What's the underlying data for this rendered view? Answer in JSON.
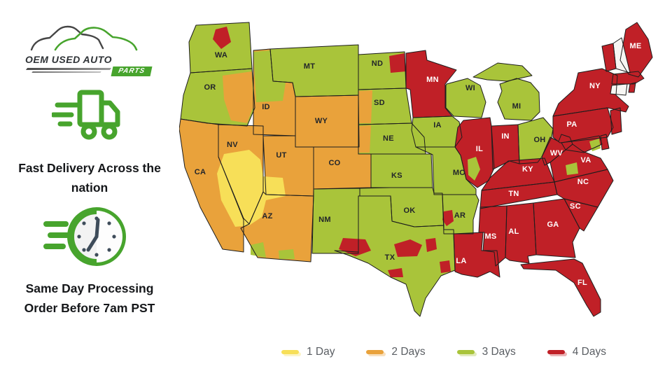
{
  "brand": {
    "logo_text_primary": "OEM USED AUTO",
    "logo_text_secondary": "PARTS",
    "color": "#47A42D"
  },
  "features": [
    {
      "icon": "delivery-truck-icon",
      "text": "Fast Delivery Across the nation"
    },
    {
      "icon": "clock-icon",
      "text": "Same Day Processing Order Before 7am PST"
    }
  ],
  "legend": [
    {
      "key": "1_day",
      "label": "1 Day",
      "color": "#F7DF58"
    },
    {
      "key": "2_days",
      "label": "2 Days",
      "color": "#E9A23B"
    },
    {
      "key": "3_days",
      "label": "3 Days",
      "color": "#A9C43A"
    },
    {
      "key": "4_days",
      "label": "4 Days",
      "color": "#C02027"
    }
  ],
  "map": {
    "description": "United States delivery time by state",
    "border_color": "#1d1d1d",
    "unshaded_color": "#F7F6F3",
    "label_color_dark": "#22252a",
    "label_color_light": "#FFFFFF",
    "states": [
      {
        "code": "WA",
        "delivery": "3_days",
        "label_shown": true
      },
      {
        "code": "OR",
        "delivery": "3_days",
        "label_shown": true
      },
      {
        "code": "CA",
        "delivery": "2_days",
        "label_shown": true
      },
      {
        "code": "NV",
        "delivery": "2_days",
        "label_shown": true
      },
      {
        "code": "ID",
        "delivery": "2_days",
        "label_shown": true
      },
      {
        "code": "MT",
        "delivery": "3_days",
        "label_shown": true
      },
      {
        "code": "WY",
        "delivery": "2_days",
        "label_shown": true
      },
      {
        "code": "UT",
        "delivery": "2_days",
        "label_shown": true
      },
      {
        "code": "CO",
        "delivery": "2_days",
        "label_shown": true
      },
      {
        "code": "AZ",
        "delivery": "2_days",
        "label_shown": true
      },
      {
        "code": "NM",
        "delivery": "3_days",
        "label_shown": true
      },
      {
        "code": "ND",
        "delivery": "3_days",
        "label_shown": true
      },
      {
        "code": "SD",
        "delivery": "3_days",
        "label_shown": true
      },
      {
        "code": "NE",
        "delivery": "3_days",
        "label_shown": true
      },
      {
        "code": "KS",
        "delivery": "3_days",
        "label_shown": true
      },
      {
        "code": "OK",
        "delivery": "3_days",
        "label_shown": true
      },
      {
        "code": "TX",
        "delivery": "3_days",
        "label_shown": true
      },
      {
        "code": "MN",
        "delivery": "4_days",
        "label_shown": true
      },
      {
        "code": "IA",
        "delivery": "3_days",
        "label_shown": true
      },
      {
        "code": "MO",
        "delivery": "3_days",
        "label_shown": true
      },
      {
        "code": "AR",
        "delivery": "3_days",
        "label_shown": true
      },
      {
        "code": "LA",
        "delivery": "4_days",
        "label_shown": true
      },
      {
        "code": "WI",
        "delivery": "3_days",
        "label_shown": true
      },
      {
        "code": "IL",
        "delivery": "4_days",
        "label_shown": true
      },
      {
        "code": "MI",
        "delivery": "3_days",
        "label_shown": true
      },
      {
        "code": "IN",
        "delivery": "4_days",
        "label_shown": true
      },
      {
        "code": "OH",
        "delivery": "3_days",
        "label_shown": true
      },
      {
        "code": "KY",
        "delivery": "4_days",
        "label_shown": true
      },
      {
        "code": "TN",
        "delivery": "4_days",
        "label_shown": true
      },
      {
        "code": "MS",
        "delivery": "4_days",
        "label_shown": true
      },
      {
        "code": "AL",
        "delivery": "4_days",
        "label_shown": true
      },
      {
        "code": "GA",
        "delivery": "4_days",
        "label_shown": true
      },
      {
        "code": "FL",
        "delivery": "4_days",
        "label_shown": true
      },
      {
        "code": "SC",
        "delivery": "4_days",
        "label_shown": true
      },
      {
        "code": "NC",
        "delivery": "4_days",
        "label_shown": true
      },
      {
        "code": "VA",
        "delivery": "4_days",
        "label_shown": true
      },
      {
        "code": "WV",
        "delivery": "4_days",
        "label_shown": true
      },
      {
        "code": "PA",
        "delivery": "4_days",
        "label_shown": true
      },
      {
        "code": "NY",
        "delivery": "4_days",
        "label_shown": true
      },
      {
        "code": "ME",
        "delivery": "4_days",
        "label_shown": true
      },
      {
        "code": "NJ",
        "delivery": "4_days",
        "label_shown": false
      },
      {
        "code": "MD",
        "delivery": "4_days",
        "label_shown": false
      },
      {
        "code": "DE",
        "delivery": "4_days",
        "label_shown": false
      },
      {
        "code": "VT",
        "delivery": "4_days",
        "label_shown": false
      },
      {
        "code": "NH",
        "delivery": "unshaded",
        "label_shown": false
      },
      {
        "code": "MA",
        "delivery": "4_days",
        "label_shown": false
      },
      {
        "code": "CT",
        "delivery": "unshaded",
        "label_shown": false
      },
      {
        "code": "RI",
        "delivery": "4_days",
        "label_shown": false
      }
    ],
    "patches": [
      {
        "id": "wa_north",
        "delivery": "4_days"
      },
      {
        "id": "or_east",
        "delivery": "2_days"
      },
      {
        "id": "id_panhandle",
        "delivery": "3_days"
      },
      {
        "id": "nd_northeast",
        "delivery": "4_days"
      },
      {
        "id": "sd_west",
        "delivery": "2_days"
      },
      {
        "id": "ne_west",
        "delivery": "2_days"
      },
      {
        "id": "sw_one_day",
        "delivery": "1_day"
      },
      {
        "id": "az_south_a",
        "delivery": "3_days"
      },
      {
        "id": "az_south_b",
        "delivery": "3_days"
      },
      {
        "id": "tx_west",
        "delivery": "4_days"
      },
      {
        "id": "tx_central",
        "delivery": "4_days"
      },
      {
        "id": "tx_northeast",
        "delivery": "4_days"
      },
      {
        "id": "tx_east",
        "delivery": "4_days"
      },
      {
        "id": "tx_south",
        "delivery": "4_days"
      },
      {
        "id": "ar_west",
        "delivery": "4_days"
      },
      {
        "id": "il_southwest",
        "delivery": "3_days"
      },
      {
        "id": "va_north",
        "delivery": "3_days"
      },
      {
        "id": "va_southwest",
        "delivery": "3_days"
      }
    ]
  }
}
